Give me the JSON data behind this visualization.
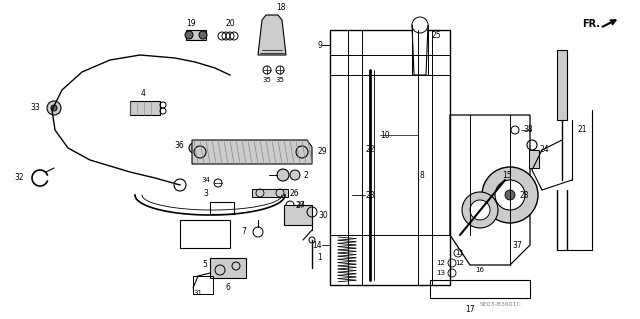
{
  "bg_color": "#ffffff",
  "line_color": "#000000",
  "gray": "#888888",
  "lightgray": "#cccccc",
  "darkgray": "#666666",
  "figsize": [
    6.4,
    3.19
  ],
  "dpi": 100,
  "diagram_code": "SE03-B3601C"
}
